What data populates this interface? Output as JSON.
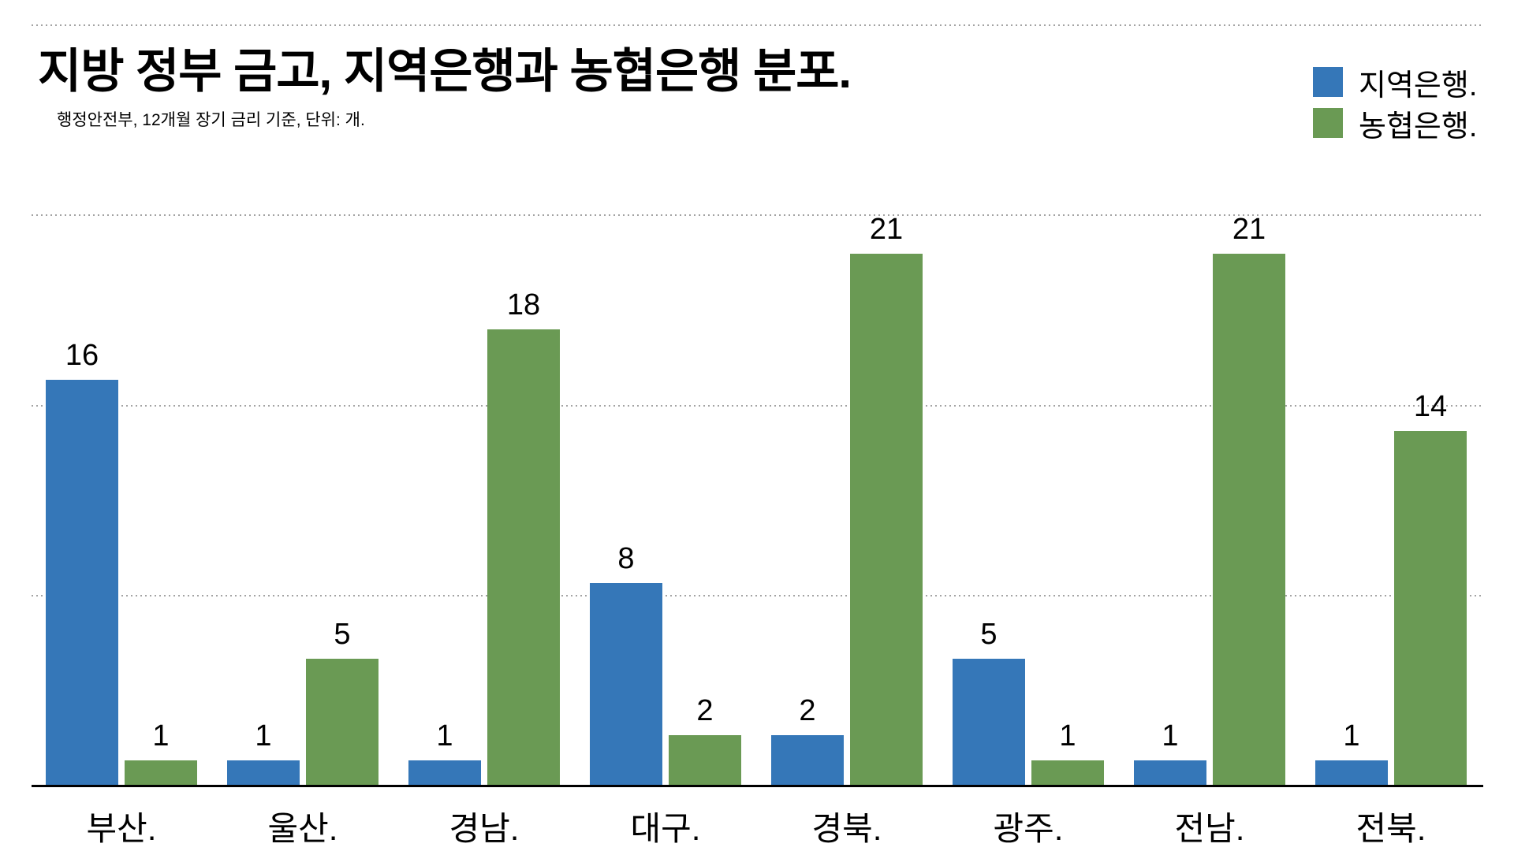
{
  "title": "지방 정부 금고, 지역은행과 농협은행 분포.",
  "subtitle": "행정안전부, 12개월 장기 금리 기준, 단위: 개.",
  "legend": {
    "items": [
      {
        "label": "지역은행.",
        "color": "#3577b8"
      },
      {
        "label": "농협은행.",
        "color": "#6a9a54"
      }
    ]
  },
  "colors": {
    "regional_bank_blue": "#3577b8",
    "nonghyup_bank_green": "#6a9a54",
    "gridline_gray": "#a3a3a3",
    "axis_black": "#000000"
  },
  "chart_data": {
    "type": "bar",
    "title": "지방 정부 금고, 지역은행과 농협은행 분포.",
    "subtitle": "행정안전부, 12개월 장기 금리 기준, 단위: 개.",
    "categories": [
      "부산.",
      "울산.",
      "경남.",
      "대구.",
      "경북.",
      "광주.",
      "전남.",
      "전북."
    ],
    "series": [
      {
        "name": "지역은행.",
        "color": "#3577b8",
        "values": [
          16,
          1,
          1,
          8,
          2,
          5,
          1,
          1
        ]
      },
      {
        "name": "농협은행.",
        "color": "#6a9a54",
        "values": [
          1,
          5,
          18,
          2,
          21,
          1,
          21,
          14
        ]
      }
    ],
    "value_labels": true,
    "xlabel": "",
    "ylabel": "",
    "ylim": [
      0,
      30
    ],
    "gridline_values": [
      7.5,
      15,
      22.5,
      30
    ],
    "grid": true,
    "grid_style": "dotted",
    "legend_position": "top-right"
  }
}
